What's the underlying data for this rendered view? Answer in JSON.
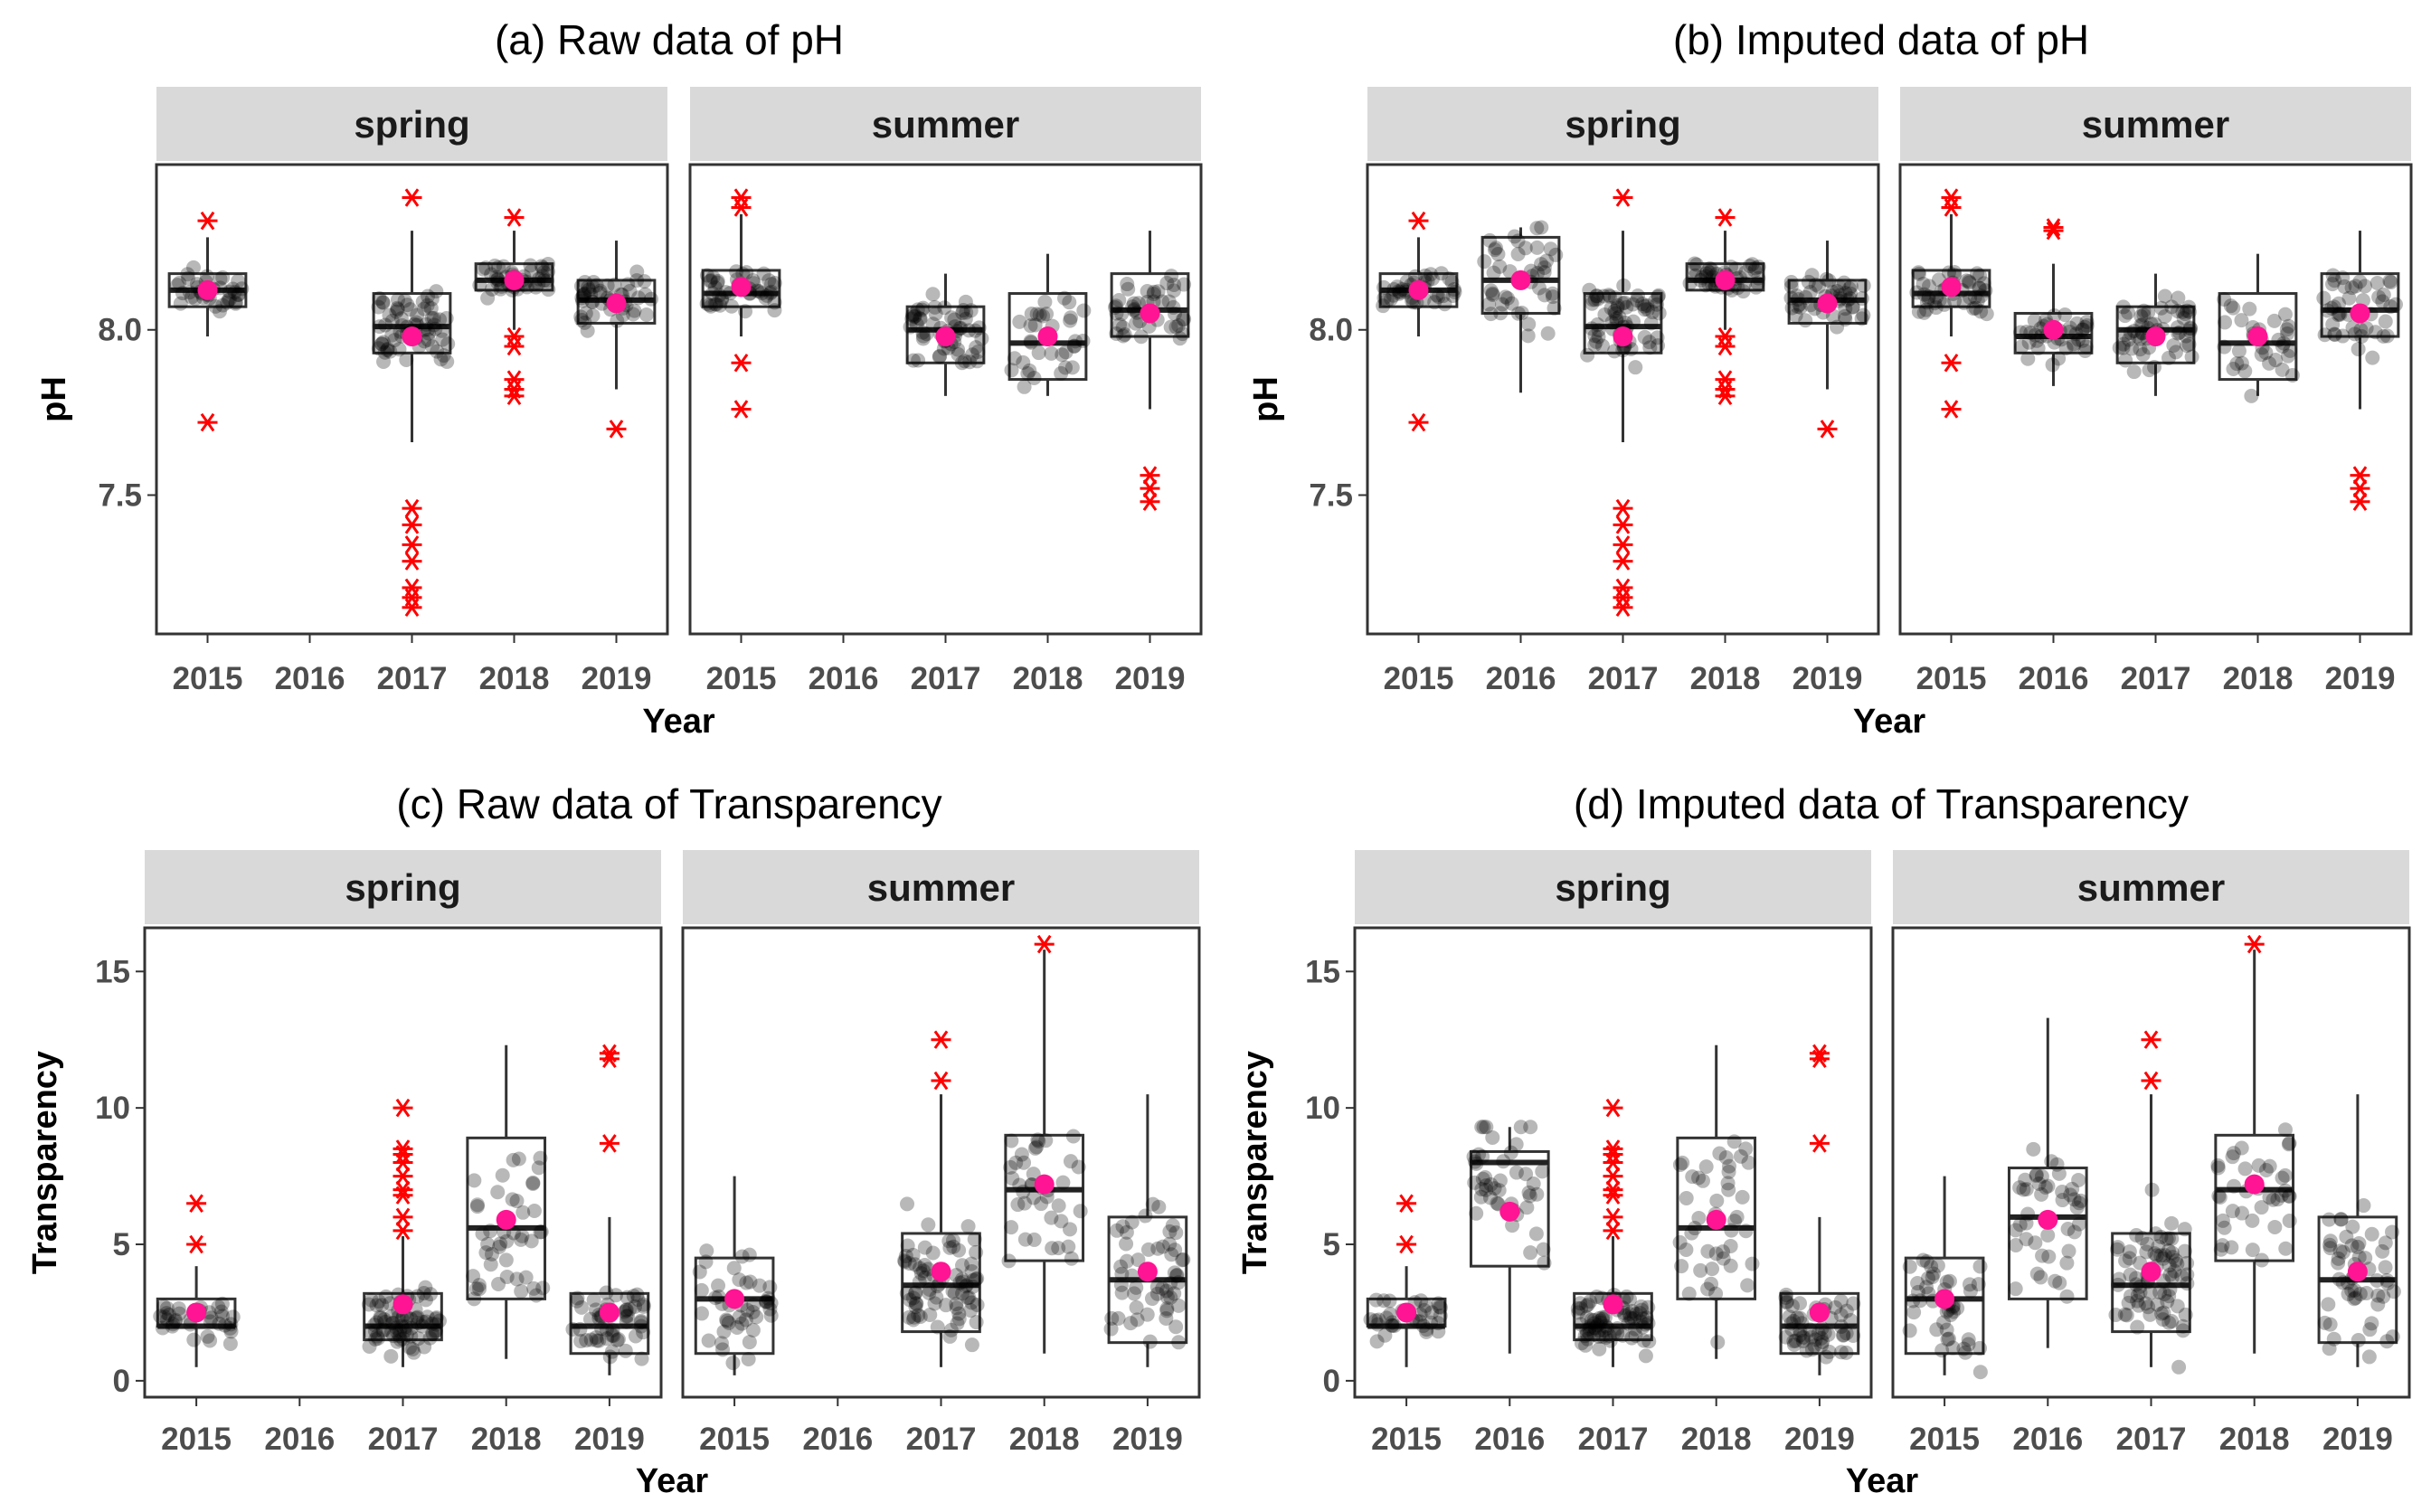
{
  "chart_data": [
    {
      "type": "box",
      "title": "(a) Raw data of pH",
      "xlabel": "Year",
      "ylabel": "pH",
      "ylim": [
        7.08,
        8.5
      ],
      "yticks": [
        7.5,
        8.0
      ],
      "ytick_labels": [
        "7.5",
        "8.0"
      ],
      "categories": [
        "2015",
        "2016",
        "2017",
        "2018",
        "2019"
      ],
      "facets": [
        {
          "label": "spring",
          "boxes": [
            {
              "x": "2015",
              "q1": 8.07,
              "median": 8.12,
              "q3": 8.17,
              "lo": 7.98,
              "hi": 8.28,
              "mean": 8.12,
              "n": 40,
              "outliers": [
                8.33,
                7.72
              ]
            },
            null,
            {
              "x": "2017",
              "q1": 7.93,
              "median": 8.01,
              "q3": 8.11,
              "lo": 7.66,
              "hi": 8.3,
              "mean": 7.98,
              "n": 70,
              "outliers": [
                8.4,
                7.46,
                7.41,
                7.35,
                7.3,
                7.22,
                7.19,
                7.16
              ]
            },
            {
              "x": "2018",
              "q1": 8.12,
              "median": 8.15,
              "q3": 8.2,
              "lo": 8.0,
              "hi": 8.3,
              "mean": 8.15,
              "n": 45,
              "outliers": [
                8.34,
                7.98,
                7.95,
                7.85,
                7.82,
                7.8
              ]
            },
            {
              "x": "2019",
              "q1": 8.02,
              "median": 8.09,
              "q3": 8.15,
              "lo": 7.82,
              "hi": 8.27,
              "mean": 8.08,
              "n": 50,
              "outliers": [
                7.7
              ]
            }
          ]
        },
        {
          "label": "summer",
          "boxes": [
            {
              "x": "2015",
              "q1": 8.07,
              "median": 8.11,
              "q3": 8.18,
              "lo": 7.98,
              "hi": 8.35,
              "mean": 8.13,
              "n": 45,
              "outliers": [
                8.4,
                8.37,
                7.9,
                7.76
              ]
            },
            null,
            {
              "x": "2017",
              "q1": 7.9,
              "median": 8.0,
              "q3": 8.07,
              "lo": 7.8,
              "hi": 8.17,
              "mean": 7.98,
              "n": 60,
              "outliers": []
            },
            {
              "x": "2018",
              "q1": 7.85,
              "median": 7.96,
              "q3": 8.11,
              "lo": 7.8,
              "hi": 8.23,
              "mean": 7.98,
              "n": 35,
              "outliers": []
            },
            {
              "x": "2019",
              "q1": 7.98,
              "median": 8.06,
              "q3": 8.17,
              "lo": 7.76,
              "hi": 8.3,
              "mean": 8.05,
              "n": 45,
              "outliers": [
                7.56,
                7.52,
                7.48
              ]
            }
          ]
        }
      ]
    },
    {
      "type": "box",
      "title": "(b) Imputed data of pH",
      "xlabel": "Year",
      "ylabel": "pH",
      "ylim": [
        7.08,
        8.5
      ],
      "yticks": [
        7.5,
        8.0
      ],
      "ytick_labels": [
        "7.5",
        "8.0"
      ],
      "categories": [
        "2015",
        "2016",
        "2017",
        "2018",
        "2019"
      ],
      "facets": [
        {
          "label": "spring",
          "boxes": [
            {
              "x": "2015",
              "q1": 8.07,
              "median": 8.12,
              "q3": 8.17,
              "lo": 7.98,
              "hi": 8.28,
              "mean": 8.12,
              "n": 40,
              "outliers": [
                8.33,
                7.72
              ]
            },
            {
              "x": "2016",
              "q1": 8.05,
              "median": 8.15,
              "q3": 8.28,
              "lo": 7.81,
              "hi": 8.31,
              "mean": 8.15,
              "n": 45,
              "outliers": []
            },
            {
              "x": "2017",
              "q1": 7.93,
              "median": 8.01,
              "q3": 8.11,
              "lo": 7.66,
              "hi": 8.3,
              "mean": 7.98,
              "n": 70,
              "outliers": [
                8.4,
                7.46,
                7.41,
                7.35,
                7.3,
                7.22,
                7.19,
                7.16
              ]
            },
            {
              "x": "2018",
              "q1": 8.12,
              "median": 8.15,
              "q3": 8.2,
              "lo": 8.0,
              "hi": 8.3,
              "mean": 8.15,
              "n": 45,
              "outliers": [
                8.34,
                7.98,
                7.95,
                7.85,
                7.82,
                7.8
              ]
            },
            {
              "x": "2019",
              "q1": 8.02,
              "median": 8.09,
              "q3": 8.15,
              "lo": 7.82,
              "hi": 8.27,
              "mean": 8.08,
              "n": 50,
              "outliers": [
                7.7
              ]
            }
          ]
        },
        {
          "label": "summer",
          "boxes": [
            {
              "x": "2015",
              "q1": 8.07,
              "median": 8.11,
              "q3": 8.18,
              "lo": 7.98,
              "hi": 8.35,
              "mean": 8.13,
              "n": 45,
              "outliers": [
                8.4,
                8.37,
                7.9,
                7.76
              ]
            },
            {
              "x": "2016",
              "q1": 7.93,
              "median": 7.98,
              "q3": 8.05,
              "lo": 7.83,
              "hi": 8.2,
              "mean": 8.0,
              "n": 40,
              "outliers": [
                8.31,
                8.3
              ]
            },
            {
              "x": "2017",
              "q1": 7.9,
              "median": 8.0,
              "q3": 8.07,
              "lo": 7.8,
              "hi": 8.17,
              "mean": 7.98,
              "n": 60,
              "outliers": []
            },
            {
              "x": "2018",
              "q1": 7.85,
              "median": 7.96,
              "q3": 8.11,
              "lo": 7.8,
              "hi": 8.23,
              "mean": 7.98,
              "n": 35,
              "outliers": []
            },
            {
              "x": "2019",
              "q1": 7.98,
              "median": 8.06,
              "q3": 8.17,
              "lo": 7.76,
              "hi": 8.3,
              "mean": 8.05,
              "n": 45,
              "outliers": [
                7.56,
                7.52,
                7.48
              ]
            }
          ]
        }
      ]
    },
    {
      "type": "box",
      "title": "(c) Raw data of Transparency",
      "xlabel": "Year",
      "ylabel": "Transparency",
      "ylim": [
        -0.6,
        16.6
      ],
      "yticks": [
        0,
        5,
        10,
        15
      ],
      "ytick_labels": [
        "0",
        "5",
        "10",
        "15"
      ],
      "categories": [
        "2015",
        "2016",
        "2017",
        "2018",
        "2019"
      ],
      "facets": [
        {
          "label": "spring",
          "boxes": [
            {
              "x": "2015",
              "q1": 2.0,
              "median": 2.0,
              "q3": 3.0,
              "lo": 0.5,
              "hi": 4.2,
              "mean": 2.5,
              "n": 35,
              "outliers": [
                6.5,
                5.0
              ]
            },
            null,
            {
              "x": "2017",
              "q1": 1.5,
              "median": 2.0,
              "q3": 3.2,
              "lo": 0.5,
              "hi": 5.3,
              "mean": 2.8,
              "n": 80,
              "outliers": [
                10.0,
                8.5,
                8.3,
                8.0,
                7.5,
                7.0,
                6.8,
                6.0,
                5.5
              ]
            },
            {
              "x": "2018",
              "q1": 3.0,
              "median": 5.6,
              "q3": 8.9,
              "lo": 0.8,
              "hi": 12.3,
              "mean": 5.9,
              "n": 45,
              "outliers": []
            },
            {
              "x": "2019",
              "q1": 1.0,
              "median": 2.0,
              "q3": 3.2,
              "lo": 0.2,
              "hi": 6.0,
              "mean": 2.5,
              "n": 55,
              "outliers": [
                12.0,
                11.8,
                8.7
              ]
            }
          ]
        },
        {
          "label": "summer",
          "boxes": [
            {
              "x": "2015",
              "q1": 1.0,
              "median": 3.0,
              "q3": 4.5,
              "lo": 0.2,
              "hi": 7.5,
              "mean": 3.0,
              "n": 45,
              "outliers": []
            },
            null,
            {
              "x": "2017",
              "q1": 1.8,
              "median": 3.5,
              "q3": 5.4,
              "lo": 0.5,
              "hi": 10.5,
              "mean": 4.0,
              "n": 80,
              "outliers": [
                12.5,
                11.0
              ]
            },
            {
              "x": "2018",
              "q1": 4.4,
              "median": 7.0,
              "q3": 9.0,
              "lo": 1.0,
              "hi": 15.8,
              "mean": 7.2,
              "n": 40,
              "outliers": [
                16.0
              ]
            },
            {
              "x": "2019",
              "q1": 1.4,
              "median": 3.7,
              "q3": 6.0,
              "lo": 0.5,
              "hi": 10.5,
              "mean": 4.0,
              "n": 55,
              "outliers": []
            }
          ]
        }
      ]
    },
    {
      "type": "box",
      "title": "(d) Imputed data of Transparency",
      "xlabel": "Year",
      "ylabel": "Transparency",
      "ylim": [
        -0.6,
        16.6
      ],
      "yticks": [
        0,
        5,
        10,
        15
      ],
      "ytick_labels": [
        "0",
        "5",
        "10",
        "15"
      ],
      "categories": [
        "2015",
        "2016",
        "2017",
        "2018",
        "2019"
      ],
      "facets": [
        {
          "label": "spring",
          "boxes": [
            {
              "x": "2015",
              "q1": 2.0,
              "median": 2.0,
              "q3": 3.0,
              "lo": 0.5,
              "hi": 4.2,
              "mean": 2.5,
              "n": 35,
              "outliers": [
                6.5,
                5.0
              ]
            },
            {
              "x": "2016",
              "q1": 4.2,
              "median": 8.0,
              "q3": 8.4,
              "lo": 1.0,
              "hi": 9.3,
              "mean": 6.2,
              "n": 45,
              "outliers": []
            },
            {
              "x": "2017",
              "q1": 1.5,
              "median": 2.0,
              "q3": 3.2,
              "lo": 0.5,
              "hi": 5.3,
              "mean": 2.8,
              "n": 80,
              "outliers": [
                10.0,
                8.5,
                8.3,
                8.0,
                7.5,
                7.0,
                6.8,
                6.0,
                5.5
              ]
            },
            {
              "x": "2018",
              "q1": 3.0,
              "median": 5.6,
              "q3": 8.9,
              "lo": 0.8,
              "hi": 12.3,
              "mean": 5.9,
              "n": 45,
              "outliers": []
            },
            {
              "x": "2019",
              "q1": 1.0,
              "median": 2.0,
              "q3": 3.2,
              "lo": 0.2,
              "hi": 6.0,
              "mean": 2.5,
              "n": 55,
              "outliers": [
                12.0,
                11.8,
                8.7
              ]
            }
          ]
        },
        {
          "label": "summer",
          "boxes": [
            {
              "x": "2015",
              "q1": 1.0,
              "median": 3.0,
              "q3": 4.5,
              "lo": 0.2,
              "hi": 7.5,
              "mean": 3.0,
              "n": 45,
              "outliers": []
            },
            {
              "x": "2016",
              "q1": 3.0,
              "median": 6.0,
              "q3": 7.8,
              "lo": 1.2,
              "hi": 13.3,
              "mean": 5.9,
              "n": 45,
              "outliers": []
            },
            {
              "x": "2017",
              "q1": 1.8,
              "median": 3.5,
              "q3": 5.4,
              "lo": 0.5,
              "hi": 10.5,
              "mean": 4.0,
              "n": 80,
              "outliers": [
                12.5,
                11.0
              ]
            },
            {
              "x": "2018",
              "q1": 4.4,
              "median": 7.0,
              "q3": 9.0,
              "lo": 1.0,
              "hi": 15.8,
              "mean": 7.2,
              "n": 40,
              "outliers": [
                16.0
              ]
            },
            {
              "x": "2019",
              "q1": 1.4,
              "median": 3.7,
              "q3": 6.0,
              "lo": 0.5,
              "hi": 10.5,
              "mean": 4.0,
              "n": 55,
              "outliers": []
            }
          ]
        }
      ]
    }
  ],
  "colors": {
    "outlier": "#ff0000",
    "mean": "#ff1493",
    "jitter_points": "#000000",
    "strip_background": "#d9d9d9",
    "box_line": "#333333"
  },
  "markers": {
    "outlier": "asterisk",
    "mean": "filled circle",
    "raw": "semi-transparent jittered dots"
  }
}
